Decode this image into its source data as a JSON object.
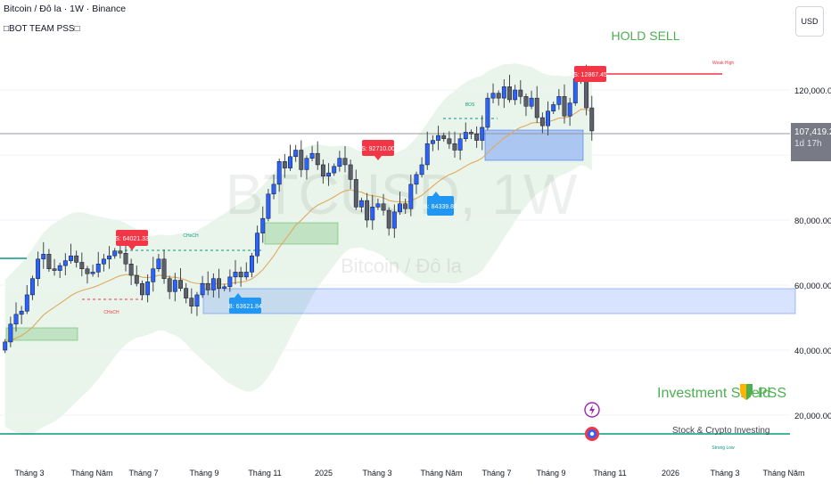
{
  "header": {
    "symbol_line": "Bitcoin / Đô la · 1W · Binance",
    "indicator_line": "□BOT TEAM PSS□"
  },
  "currency_button": "USD",
  "watermark": {
    "ticker": "BTCUSD, 1W",
    "name": "Bitcoin / Đô la"
  },
  "signals": {
    "hold": "HOLD SELL",
    "sell_1": "S: 64021.33",
    "sell_2": "S: 92710.00",
    "sell_3": "S: 12867.45",
    "buy_1": "B: 63621.84",
    "buy_2": "B: 84339.81"
  },
  "structure_labels": {
    "choch_1": "CHoCH",
    "choch_2": "CHoCH",
    "bos": "BOS",
    "weak_high": "Weak High",
    "strong_low": "Strong Low"
  },
  "branding": {
    "title": "Investment Shield",
    "shield_icon": "shield-icon",
    "suffix": "PSS",
    "subtitle": "Stock & Crypto Investing"
  },
  "price_axis": {
    "ticks": [
      "120,000.00",
      "100,000.00",
      "80,000.00",
      "60,000.00",
      "40,000.00",
      "20,000.00"
    ],
    "current_price": "107,419.25",
    "countdown": "1d 17h"
  },
  "time_axis": {
    "ticks": [
      "Tháng 3",
      "Tháng Năm",
      "Tháng 7",
      "Tháng 9",
      "Tháng 11",
      "2025",
      "Tháng 3",
      "Tháng Năm",
      "Tháng 7",
      "Tháng 9",
      "Tháng 11",
      "2026",
      "Tháng 3",
      "Tháng Năm"
    ]
  },
  "colors": {
    "up": "#2962ff",
    "down": "#131722",
    "sell": "#f23645",
    "buy": "#2196f3",
    "brand_green": "#4caf50"
  },
  "chart_data": {
    "type": "candlestick",
    "timeframe": "1W",
    "ylim": [
      20000,
      130000
    ],
    "yticks": [
      120000,
      100000,
      80000,
      60000,
      40000,
      20000
    ],
    "current_price": 107419.25,
    "closes": [
      42500,
      48000,
      51000,
      52000,
      57000,
      62000,
      68000,
      69500,
      65000,
      64500,
      66000,
      67500,
      69000,
      67000,
      65000,
      63500,
      64000,
      66500,
      68000,
      69000,
      70500,
      69800,
      66500,
      63000,
      60500,
      57000,
      61000,
      65000,
      68000,
      62000,
      58000,
      61500,
      59000,
      56000,
      53500,
      57000,
      60500,
      58500,
      62000,
      59000,
      59500,
      62500,
      64000,
      62500,
      64000,
      69000,
      76000,
      80500,
      88000,
      91000,
      98000,
      96000,
      99500,
      101500,
      95500,
      99000,
      100500,
      97000,
      93500,
      94500,
      96500,
      99000,
      97000,
      92500,
      84000,
      86000,
      80000,
      84000,
      85000,
      83000,
      77500,
      82500,
      85000,
      83500,
      91000,
      94000,
      97000,
      103500,
      104500,
      106000,
      105000,
      103500,
      101500,
      105000,
      107000,
      106500,
      104500,
      108500,
      117500,
      119000,
      117500,
      121000,
      117000,
      120000,
      118000,
      115000,
      117500,
      111500,
      109000,
      113500,
      115500,
      118000,
      112000,
      116000,
      123500,
      125500,
      114500,
      107419.25
    ]
  }
}
